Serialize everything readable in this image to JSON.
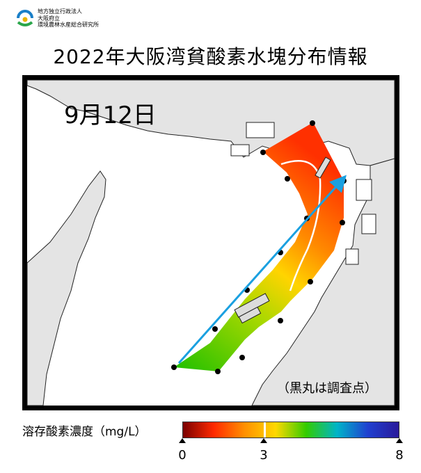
{
  "header": {
    "org_line1": "地方独立行政法人",
    "org_line2": "大阪府立",
    "org_line3": "環境農林水産総合研究所",
    "title": "2022年大阪湾貧酸素水塊分布情報"
  },
  "map": {
    "date": "9月12日",
    "note": "（黒丸は調査点）"
  },
  "legend": {
    "title": "溶存酸素濃度（mg/L）",
    "ticks": [
      "0",
      "3",
      "8"
    ],
    "min": 0,
    "threshold": 3,
    "max": 8,
    "colors": [
      "#7a0000",
      "#ff2a00",
      "#ff9000",
      "#ffd800",
      "#33cc00",
      "#00b4c8",
      "#2040d0",
      "#2a1a9a"
    ]
  }
}
